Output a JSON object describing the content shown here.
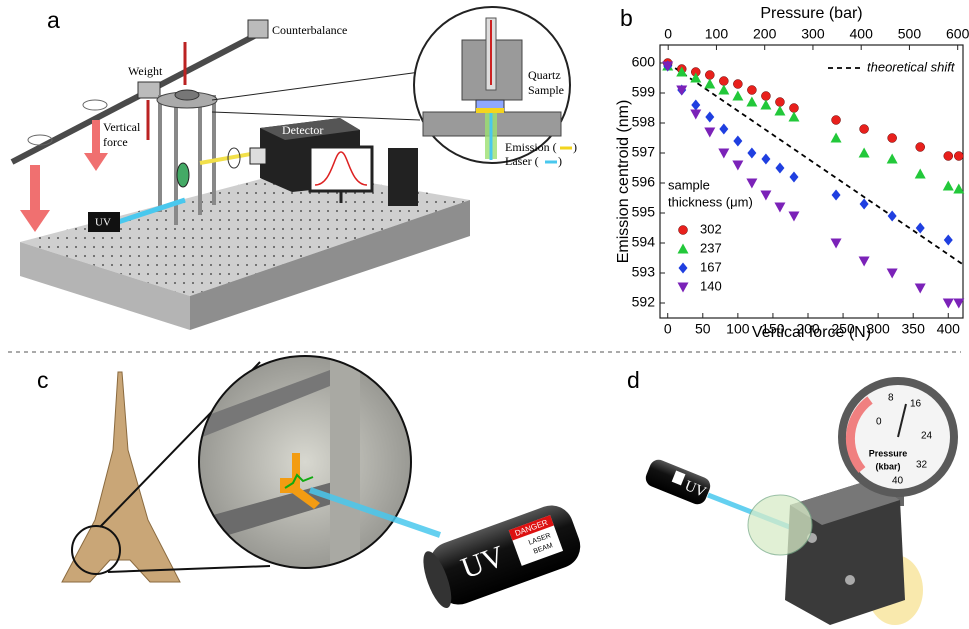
{
  "panel_a": {
    "label": "a",
    "counterbalance": "Counterbalance",
    "weight": "Weight",
    "vertical_force": [
      "Vertical",
      "force"
    ],
    "detector": "Detector",
    "uv": "UV",
    "quartz": "Quartz",
    "sample": "Sample",
    "emission": [
      "Emission (",
      ")"
    ],
    "laser": [
      "Laser (",
      ")"
    ]
  },
  "chart_data": {
    "type": "scatter",
    "panel_label": "b",
    "x_label": "Vertical force (N)",
    "x2_label": "Pressure (bar)",
    "y_label": "Emission centroid (nm)",
    "x": [
      0,
      20,
      40,
      60,
      80,
      100,
      120,
      140,
      160,
      180,
      240,
      280,
      320,
      360,
      400,
      415
    ],
    "xlim": [
      -11,
      421
    ],
    "xticks": [
      0,
      50,
      100,
      150,
      200,
      250,
      300,
      350,
      400
    ],
    "x2lim": [
      -17,
      611
    ],
    "x2ticks": [
      0,
      100,
      200,
      300,
      400,
      500,
      600
    ],
    "ylim": [
      591.5,
      600.6
    ],
    "yticks": [
      592,
      593,
      594,
      595,
      596,
      597,
      598,
      599,
      600
    ],
    "legend_title": [
      "sample",
      "thickness (μm)"
    ],
    "legend_position": "left",
    "series": [
      {
        "name": "302",
        "color": "#e8201c",
        "marker": "circle",
        "values": [
          600.0,
          599.8,
          599.7,
          599.6,
          599.4,
          599.3,
          599.1,
          598.9,
          598.7,
          598.5,
          598.1,
          597.8,
          597.5,
          597.2,
          596.9,
          596.9
        ]
      },
      {
        "name": "237",
        "color": "#22c83a",
        "marker": "triangle-up",
        "values": [
          599.9,
          599.7,
          599.5,
          599.3,
          599.1,
          598.9,
          598.7,
          598.6,
          598.4,
          598.2,
          597.5,
          597.0,
          596.8,
          596.3,
          595.9,
          595.8
        ]
      },
      {
        "name": "167",
        "color": "#1f3fe0",
        "marker": "diamond",
        "values": [
          599.9,
          599.1,
          598.6,
          598.2,
          597.8,
          597.4,
          597.0,
          596.8,
          596.5,
          596.2,
          595.6,
          595.3,
          594.9,
          594.5,
          594.1,
          null
        ]
      },
      {
        "name": "140",
        "color": "#7b22b8",
        "marker": "triangle-down",
        "values": [
          599.9,
          599.1,
          598.3,
          597.7,
          597.0,
          596.6,
          596.0,
          595.6,
          595.2,
          594.9,
          594.0,
          593.4,
          593.0,
          592.5,
          592.0,
          592.0
        ]
      }
    ],
    "reference_line": {
      "name": "theoretical shift",
      "color": "#000000",
      "dashed": true,
      "x": [
        0,
        420
      ],
      "values": [
        600.0,
        593.3
      ]
    }
  },
  "panel_c": {
    "label": "c",
    "uv": "UV",
    "danger": "DANGER",
    "laser_beam": [
      "LASER",
      "BEAM"
    ]
  },
  "panel_d": {
    "label": "d",
    "uv": "UV",
    "gauge_ticks": [
      0,
      8,
      16,
      24,
      32,
      40
    ],
    "pressure": "Pressure",
    "unit": "(kbar)"
  }
}
